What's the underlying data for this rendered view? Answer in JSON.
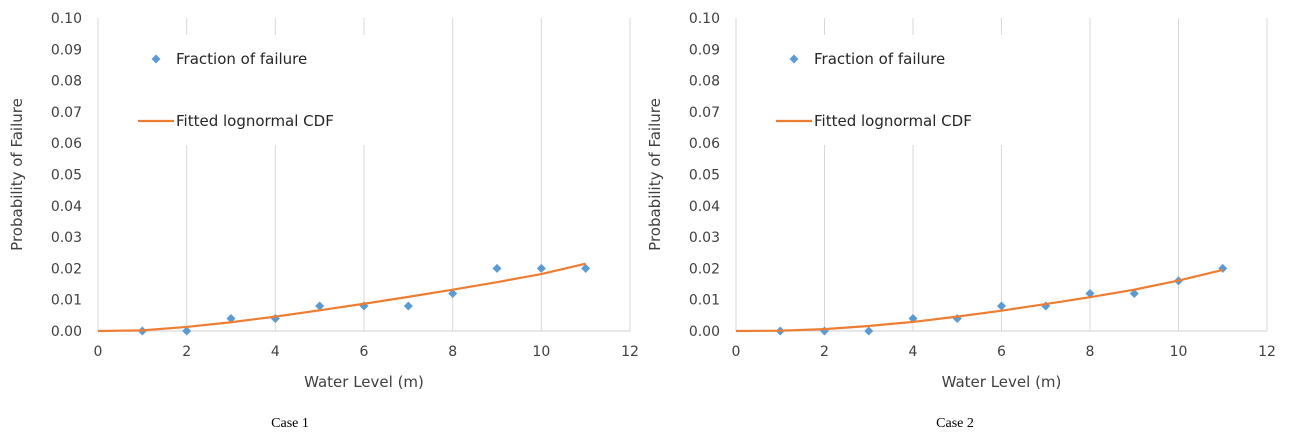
{
  "colors": {
    "marker": "#5b9bd5",
    "line": "#ed7d31",
    "grid": "#d9d9d9",
    "text": "#404040"
  },
  "chart_data": [
    {
      "type": "scatter",
      "caption": "Case 1",
      "xlabel": "Water Level (m)",
      "ylabel": "Probability of Failure",
      "xlim": [
        0,
        12
      ],
      "ylim": [
        0,
        0.1
      ],
      "x_ticks": [
        "0",
        "2",
        "4",
        "6",
        "8",
        "10",
        "12"
      ],
      "y_ticks": [
        "0.00",
        "0.01",
        "0.02",
        "0.03",
        "0.04",
        "0.05",
        "0.06",
        "0.07",
        "0.08",
        "0.09",
        "0.10"
      ],
      "grid": "vertical",
      "legend_position": "top-left",
      "series": [
        {
          "name": "Fraction of failure",
          "kind": "markers",
          "x": [
            1,
            2,
            3,
            4,
            5,
            6,
            7,
            8,
            9,
            10,
            11
          ],
          "y": [
            0.0,
            0.0,
            0.004,
            0.004,
            0.008,
            0.008,
            0.008,
            0.012,
            0.02,
            0.02,
            0.02
          ]
        },
        {
          "name": "Fitted lognormal CDF",
          "kind": "line",
          "x": [
            0,
            1,
            2,
            3,
            4,
            5,
            6,
            7,
            8,
            9,
            10,
            11
          ],
          "y": [
            0.0,
            0.0002,
            0.0013,
            0.0028,
            0.0046,
            0.0066,
            0.0087,
            0.0109,
            0.0132,
            0.0156,
            0.0182,
            0.0215
          ]
        }
      ]
    },
    {
      "type": "scatter",
      "caption": "Case 2",
      "xlabel": "Water Level (m)",
      "ylabel": "Probability of Failure",
      "xlim": [
        0,
        12
      ],
      "ylim": [
        0,
        0.1
      ],
      "x_ticks": [
        "0",
        "2",
        "4",
        "6",
        "8",
        "10",
        "12"
      ],
      "y_ticks": [
        "0.00",
        "0.01",
        "0.02",
        "0.03",
        "0.04",
        "0.05",
        "0.06",
        "0.07",
        "0.08",
        "0.09",
        "0.10"
      ],
      "grid": "vertical",
      "legend_position": "top-left",
      "series": [
        {
          "name": "Fraction of failure",
          "kind": "markers",
          "x": [
            1,
            2,
            3,
            4,
            5,
            6,
            7,
            8,
            9,
            10,
            11
          ],
          "y": [
            0.0,
            0.0,
            0.0,
            0.004,
            0.004,
            0.008,
            0.008,
            0.012,
            0.012,
            0.016,
            0.02
          ]
        },
        {
          "name": "Fitted lognormal CDF",
          "kind": "line",
          "x": [
            0,
            1,
            2,
            3,
            4,
            5,
            6,
            7,
            8,
            9,
            10,
            11
          ],
          "y": [
            0.0,
            0.0001,
            0.0006,
            0.0016,
            0.0029,
            0.0046,
            0.0065,
            0.0086,
            0.0108,
            0.0132,
            0.0161,
            0.0195
          ]
        }
      ]
    }
  ]
}
